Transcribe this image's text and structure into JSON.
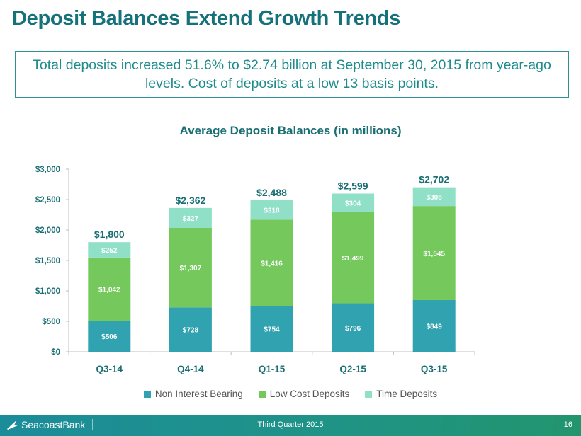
{
  "slide": {
    "title": "Deposit Balances Extend Growth Trends",
    "callout": "Total deposits increased 51.6%  to $2.74 billion at September 30, 2015 from year-ago levels. Cost of deposits at a low 13 basis points."
  },
  "footer": {
    "logo_text": "SeacoastBank",
    "center_text": "Third Quarter 2015",
    "page_number": "16"
  },
  "colors": {
    "title": "#16727a",
    "non_interest_bearing": "#31a3b0",
    "low_cost_deposits": "#75c95c",
    "time_deposits": "#8fe0c6"
  },
  "chart_data": {
    "type": "bar",
    "stacked": true,
    "title": "Average Deposit Balances (in millions)",
    "xlabel": "",
    "ylabel": "",
    "categories": [
      "Q3-14",
      "Q4-14",
      "Q1-15",
      "Q2-15",
      "Q3-15"
    ],
    "series": [
      {
        "name": "Non Interest Bearing",
        "values": [
          506,
          728,
          754,
          796,
          849
        ],
        "labels": [
          "$506",
          "$728",
          "$754",
          "$796",
          "$849"
        ]
      },
      {
        "name": "Low Cost Deposits",
        "values": [
          1042,
          1307,
          1416,
          1499,
          1545
        ],
        "labels": [
          "$1,042",
          "$1,307",
          "$1,416",
          "$1,499",
          "$1,545"
        ]
      },
      {
        "name": "Time Deposits",
        "values": [
          252,
          327,
          318,
          304,
          308
        ],
        "labels": [
          "$252",
          "$327",
          "$318",
          "$304",
          "$308"
        ]
      }
    ],
    "totals": [
      1800,
      2362,
      2488,
      2599,
      2702
    ],
    "total_labels": [
      "$1,800",
      "$2,362",
      "$2,488",
      "$2,599",
      "$2,702"
    ],
    "ylim": [
      0,
      3000
    ],
    "yticks": [
      0,
      500,
      1000,
      1500,
      2000,
      2500,
      3000
    ],
    "ytick_labels": [
      "$0",
      "$500",
      "$1,000",
      "$1,500",
      "$2,000",
      "$2,500",
      "$3,000"
    ],
    "grid": false,
    "legend_position": "bottom"
  }
}
